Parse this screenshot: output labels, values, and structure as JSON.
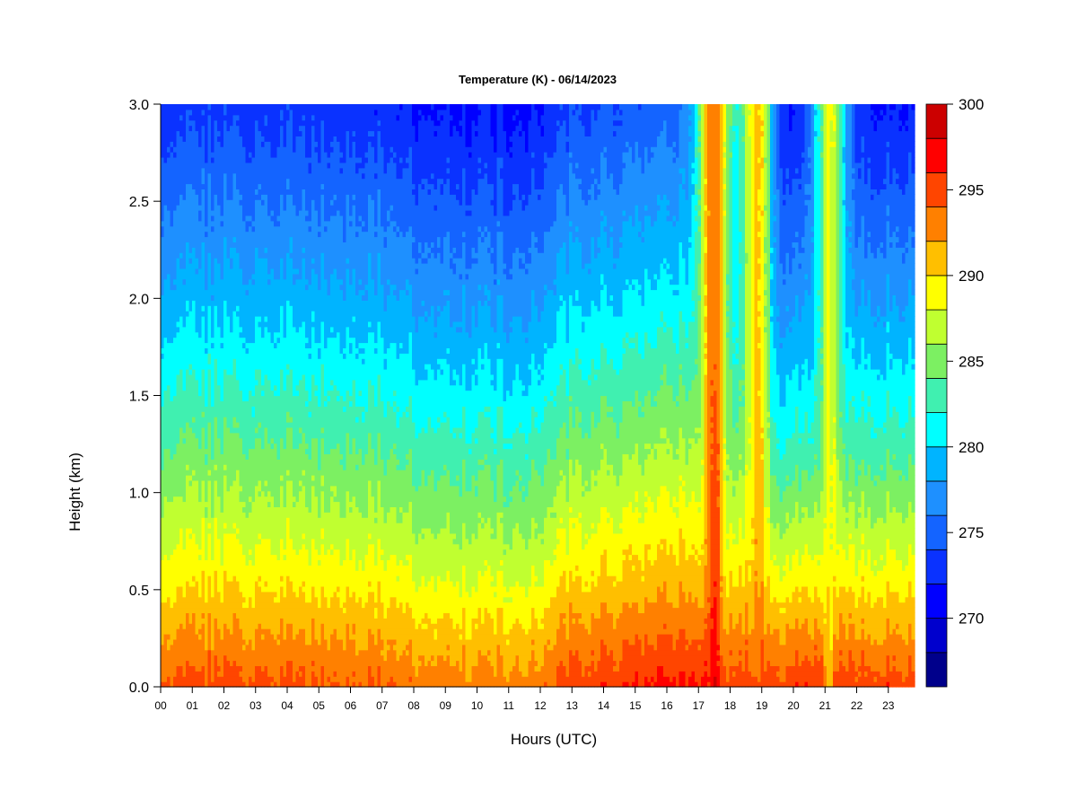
{
  "chart_data": {
    "type": "heatmap",
    "title": "Temperature (K) - 06/14/2023",
    "xlabel": "Hours (UTC)",
    "ylabel": "Height (km)",
    "x_ticks": [
      "00",
      "01",
      "02",
      "03",
      "04",
      "05",
      "06",
      "07",
      "08",
      "09",
      "10",
      "11",
      "12",
      "13",
      "14",
      "15",
      "16",
      "17",
      "18",
      "19",
      "20",
      "21",
      "22",
      "23"
    ],
    "xlim": [
      0,
      23.9
    ],
    "y_ticks": [
      "0.0",
      "0.5",
      "1.0",
      "1.5",
      "2.0",
      "2.5",
      "3.0"
    ],
    "ylim": [
      0,
      3.0
    ],
    "colorbar": {
      "label_values": [
        300,
        295,
        290,
        285,
        280,
        275,
        270
      ],
      "range": [
        266,
        300
      ],
      "levels": [
        266,
        268,
        270,
        272,
        274,
        276,
        278,
        280,
        282,
        284,
        286,
        288,
        290,
        292,
        294,
        296,
        298,
        300
      ],
      "colors": [
        "#00008B",
        "#0000CD",
        "#0000FF",
        "#0A32FF",
        "#1464FF",
        "#1E90FF",
        "#00B4FF",
        "#00FFFF",
        "#40F0B0",
        "#7CF062",
        "#C0FF30",
        "#FFFF00",
        "#FFBF00",
        "#FF8000",
        "#FF4500",
        "#FF0000",
        "#CC0000",
        "#8B0000"
      ]
    },
    "profile_model": {
      "description": "Temperature decreases with height; warm plumes near hours 17.5, 18.9 and 21.2.",
      "surface_temp_night": 294,
      "surface_temp_day": 296,
      "lapse_K_per_km": 8.5,
      "plumes": [
        {
          "hour": 17.55,
          "peak_temp": 296,
          "top_km": 3.0
        },
        {
          "hour": 18.9,
          "peak_temp": 291,
          "top_km": 3.0
        },
        {
          "hour": 21.2,
          "peak_temp": 288,
          "top_km": 3.0
        }
      ]
    }
  }
}
